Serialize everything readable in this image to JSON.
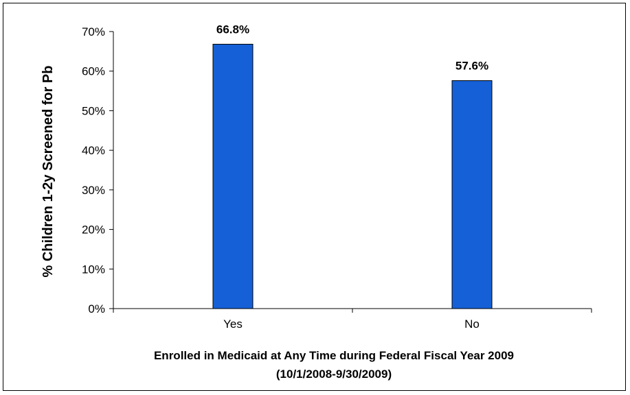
{
  "chart_data": {
    "type": "bar",
    "categories": [
      "Yes",
      "No"
    ],
    "values": [
      66.8,
      57.6
    ],
    "data_labels": [
      "66.8%",
      "57.6%"
    ],
    "title": "",
    "xlabel": "Enrolled in Medicaid at Any Time during Federal Fiscal Year 2009",
    "xlabel_line2": "(10/1/2008-9/30/2009)",
    "ylabel": "% Children 1-2y Screened for Pb",
    "ylim": [
      0,
      70
    ],
    "yticks": [
      0,
      10,
      20,
      30,
      40,
      50,
      60,
      70
    ],
    "ytick_labels": [
      "0%",
      "10%",
      "20%",
      "30%",
      "40%",
      "50%",
      "60%",
      "70%"
    ],
    "grid": false,
    "legend": "none",
    "bar_color": "#1560d6"
  }
}
